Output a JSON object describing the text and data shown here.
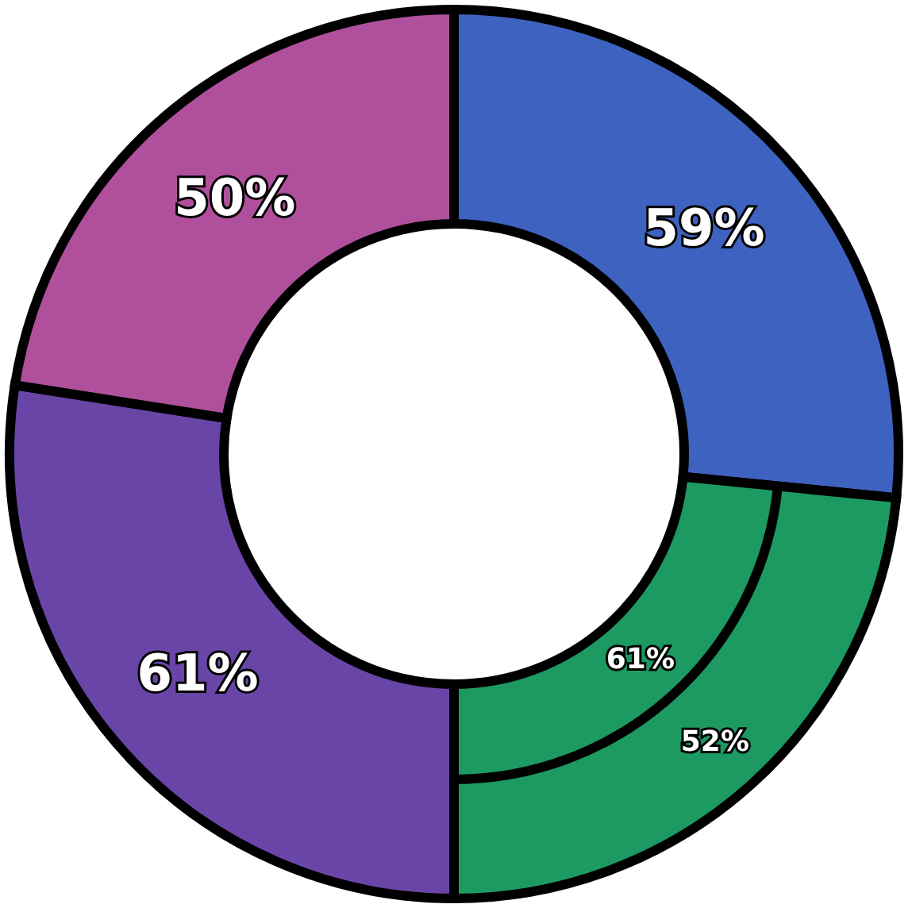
{
  "chart_data": {
    "type": "donut",
    "categories": [
      null,
      null,
      null,
      null
    ],
    "values": [
      59,
      52,
      61,
      50
    ],
    "colors": [
      "#3e62bf",
      "#1c9a62",
      "#6a45a8",
      "#b0509c"
    ],
    "value_labels": [
      "59%",
      "52%",
      "61%",
      "50%"
    ],
    "annotations": [
      "61%"
    ]
  }
}
